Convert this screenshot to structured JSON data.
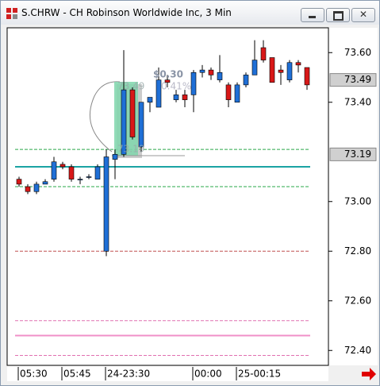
{
  "chart_data": {
    "type": "candlestick",
    "title": "S.CHRW - CH Robinson Worldwide Inc, 3 Min",
    "categories": [
      "05:30",
      null,
      null,
      null,
      null,
      "05:45",
      null,
      null,
      null,
      null,
      "24-23:30",
      null,
      null,
      null,
      null,
      null,
      null,
      null,
      null,
      null,
      "00:00",
      null,
      null,
      null,
      null,
      "25-00:15",
      null,
      null,
      null,
      null,
      null,
      null,
      null,
      null
    ],
    "open": [
      73.09,
      73.06,
      73.04,
      73.07,
      73.09,
      73.15,
      73.14,
      73.09,
      73.1,
      73.09,
      72.8,
      73.17,
      73.19,
      73.45,
      73.22,
      73.4,
      73.38,
      73.49,
      73.41,
      73.43,
      73.43,
      73.52,
      73.53,
      73.49,
      73.47,
      73.4,
      73.47,
      73.51,
      73.62,
      73.58,
      73.53,
      73.49,
      73.56,
      73.54
    ],
    "high": [
      73.1,
      73.07,
      73.08,
      73.09,
      73.18,
      73.16,
      73.15,
      73.1,
      73.11,
      73.15,
      73.21,
      73.21,
      73.61,
      73.46,
      73.4,
      73.42,
      73.54,
      73.51,
      73.45,
      73.45,
      73.53,
      73.55,
      73.54,
      73.59,
      73.48,
      73.48,
      73.52,
      73.65,
      73.65,
      73.58,
      73.55,
      73.57,
      73.57,
      73.54
    ],
    "low": [
      73.06,
      73.03,
      73.03,
      73.07,
      73.08,
      73.13,
      73.08,
      73.07,
      73.09,
      73.09,
      72.78,
      73.09,
      73.18,
      73.25,
      73.2,
      73.36,
      73.38,
      73.46,
      73.4,
      73.38,
      73.36,
      73.5,
      73.49,
      73.48,
      73.38,
      73.4,
      73.46,
      73.51,
      73.56,
      73.48,
      73.47,
      73.48,
      73.52,
      73.45
    ],
    "close": [
      73.07,
      73.04,
      73.07,
      73.08,
      73.16,
      73.14,
      73.09,
      73.09,
      73.1,
      73.14,
      73.18,
      73.19,
      73.45,
      73.26,
      73.4,
      73.42,
      73.49,
      73.48,
      73.43,
      73.41,
      73.52,
      73.53,
      73.51,
      73.52,
      73.41,
      73.47,
      73.51,
      73.57,
      73.57,
      73.48,
      73.52,
      73.56,
      73.55,
      73.47
    ],
    "up_color": "#1f6fd6",
    "down_color": "#d81818",
    "ylim": [
      72.34,
      73.7
    ],
    "yticks": [
      {
        "value": 72.4,
        "label": "72.40"
      },
      {
        "value": 72.6,
        "label": "72.60"
      },
      {
        "value": 72.8,
        "label": "72.80"
      },
      {
        "value": 73.0,
        "label": "73.00"
      },
      {
        "value": 73.4,
        "label": "73.40"
      },
      {
        "value": 73.6,
        "label": "73.60"
      }
    ],
    "hlines": [
      {
        "value": 73.21,
        "color": "#2aa84a",
        "style": "dashed"
      },
      {
        "value": 73.06,
        "color": "#2aa84a",
        "style": "dashed"
      },
      {
        "value": 73.14,
        "color": "#1aa3a3",
        "style": "solid"
      },
      {
        "value": 72.8,
        "color": "#c05050",
        "style": "dashed"
      },
      {
        "value": 72.52,
        "color": "#e070b0",
        "style": "dashed"
      },
      {
        "value": 72.46,
        "color": "#f090c8",
        "style": "solid"
      },
      {
        "value": 72.38,
        "color": "#e070b0",
        "style": "dashed"
      }
    ],
    "price_labels": [
      {
        "value": 73.49,
        "label": "73.49"
      },
      {
        "value": 73.19,
        "label": "73.19"
      }
    ],
    "annotations": {
      "change": "$0.30",
      "end_price": "73.49",
      "percent": "0.41%",
      "start_price": "73.19"
    }
  }
}
